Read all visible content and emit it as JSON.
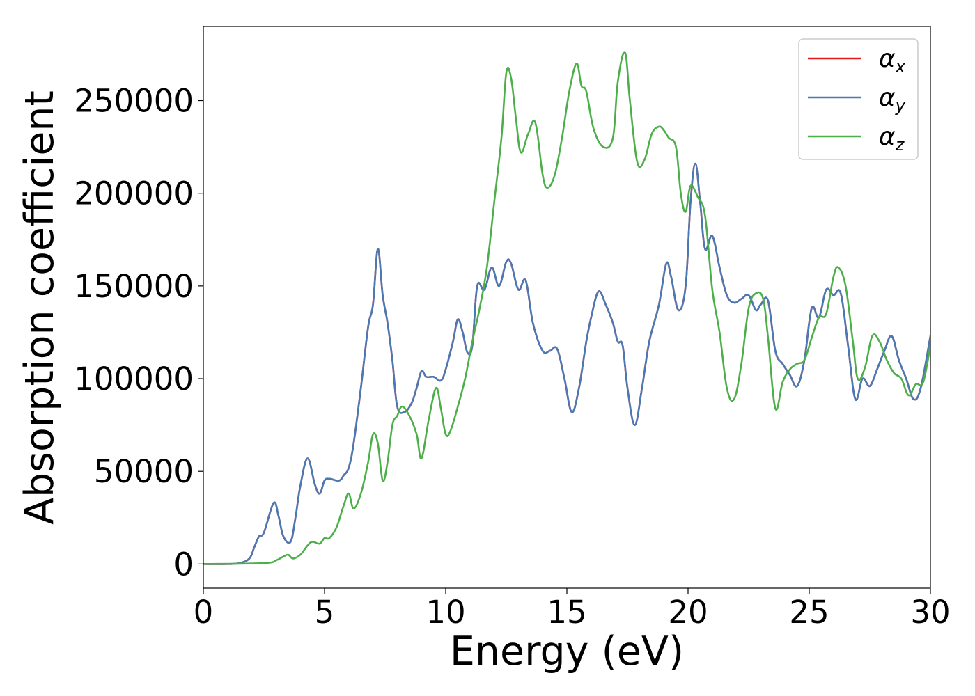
{
  "chart_data": {
    "type": "line",
    "title": "",
    "xlabel": "Energy (eV)",
    "ylabel": "Absorption coefficient",
    "xlim": [
      0,
      30
    ],
    "ylim": [
      -13000,
      290000
    ],
    "xticks": [
      0,
      5,
      10,
      15,
      20,
      25,
      30
    ],
    "yticks": [
      0,
      50000,
      100000,
      150000,
      200000,
      250000
    ],
    "xtick_labels": [
      "0",
      "5",
      "10",
      "15",
      "20",
      "25",
      "30"
    ],
    "ytick_labels": [
      "0",
      "50000",
      "100000",
      "150000",
      "200000",
      "250000"
    ],
    "legend_position": "top-right",
    "series": [
      {
        "name": "α_x",
        "label_main": "α",
        "label_sub": "x",
        "color": "#e41a1c",
        "x": [
          0,
          1,
          1.5,
          1.9,
          2.1,
          2.3,
          2.5,
          2.9,
          3.1,
          3.3,
          3.6,
          3.8,
          4.0,
          4.3,
          4.6,
          4.8,
          5.0,
          5.2,
          5.6,
          5.8,
          6.0,
          6.2,
          6.5,
          6.8,
          7.0,
          7.2,
          7.4,
          7.6,
          7.8,
          8.0,
          8.3,
          8.6,
          8.8,
          9.0,
          9.2,
          9.5,
          9.8,
          10.0,
          10.3,
          10.5,
          10.7,
          10.9,
          11.1,
          11.3,
          11.6,
          11.9,
          12.2,
          12.5,
          12.7,
          13.0,
          13.3,
          13.6,
          14.0,
          14.3,
          14.6,
          14.9,
          15.2,
          15.5,
          15.8,
          16.0,
          16.3,
          16.6,
          16.9,
          17.1,
          17.3,
          17.5,
          17.8,
          18.1,
          18.4,
          18.8,
          19.1,
          19.3,
          19.6,
          19.9,
          20.1,
          20.3,
          20.5,
          20.7,
          21.0,
          21.3,
          21.6,
          21.9,
          22.2,
          22.5,
          22.8,
          23.0,
          23.3,
          23.6,
          23.9,
          24.2,
          24.5,
          24.8,
          25.1,
          25.4,
          25.7,
          26.0,
          26.3,
          26.6,
          26.9,
          27.2,
          27.5,
          27.8,
          28.1,
          28.4,
          28.7,
          29.0,
          29.3,
          29.6,
          30.0
        ],
        "y": [
          0,
          0,
          500,
          3000,
          9000,
          15000,
          17000,
          33000,
          26000,
          15000,
          12000,
          25000,
          42000,
          57000,
          43000,
          38000,
          45000,
          46000,
          45000,
          48000,
          52000,
          65000,
          95000,
          128000,
          140000,
          170000,
          145000,
          130000,
          110000,
          85000,
          82000,
          87000,
          95000,
          104000,
          101000,
          101000,
          99000,
          105000,
          120000,
          132000,
          125000,
          114000,
          118000,
          150000,
          148000,
          160000,
          150000,
          163000,
          162000,
          148000,
          153000,
          130000,
          115000,
          115000,
          116000,
          100000,
          82000,
          95000,
          120000,
          133000,
          147000,
          140000,
          130000,
          120000,
          118000,
          95000,
          75000,
          95000,
          120000,
          140000,
          162000,
          155000,
          137000,
          150000,
          195000,
          216000,
          195000,
          170000,
          177000,
          160000,
          145000,
          141000,
          143000,
          145000,
          137000,
          140000,
          142000,
          115000,
          108000,
          102000,
          96000,
          110000,
          138000,
          133000,
          148000,
          145000,
          146000,
          118000,
          89000,
          100000,
          96000,
          105000,
          115000,
          123000,
          110000,
          100000,
          89000,
          95000,
          123000
        ]
      },
      {
        "name": "α_y",
        "label_main": "α",
        "label_sub": "y",
        "color": "#4a79b4",
        "x": [
          0,
          1,
          1.5,
          1.9,
          2.1,
          2.3,
          2.5,
          2.9,
          3.1,
          3.3,
          3.6,
          3.8,
          4.0,
          4.3,
          4.6,
          4.8,
          5.0,
          5.2,
          5.6,
          5.8,
          6.0,
          6.2,
          6.5,
          6.8,
          7.0,
          7.2,
          7.4,
          7.6,
          7.8,
          8.0,
          8.3,
          8.6,
          8.8,
          9.0,
          9.2,
          9.5,
          9.8,
          10.0,
          10.3,
          10.5,
          10.7,
          10.9,
          11.1,
          11.3,
          11.6,
          11.9,
          12.2,
          12.5,
          12.7,
          13.0,
          13.3,
          13.6,
          14.0,
          14.3,
          14.6,
          14.9,
          15.2,
          15.5,
          15.8,
          16.0,
          16.3,
          16.6,
          16.9,
          17.1,
          17.3,
          17.5,
          17.8,
          18.1,
          18.4,
          18.8,
          19.1,
          19.3,
          19.6,
          19.9,
          20.1,
          20.3,
          20.5,
          20.7,
          21.0,
          21.3,
          21.6,
          21.9,
          22.2,
          22.5,
          22.8,
          23.0,
          23.3,
          23.6,
          23.9,
          24.2,
          24.5,
          24.8,
          25.1,
          25.4,
          25.7,
          26.0,
          26.3,
          26.6,
          26.9,
          27.2,
          27.5,
          27.8,
          28.1,
          28.4,
          28.7,
          29.0,
          29.3,
          29.6,
          30.0
        ],
        "y": [
          0,
          0,
          500,
          3000,
          9000,
          15000,
          17000,
          33000,
          26000,
          15000,
          12000,
          25000,
          42000,
          57000,
          43000,
          38000,
          45000,
          46000,
          45000,
          48000,
          52000,
          65000,
          95000,
          128000,
          140000,
          170000,
          145000,
          130000,
          110000,
          85000,
          82000,
          87000,
          95000,
          104000,
          101000,
          101000,
          99000,
          105000,
          120000,
          132000,
          125000,
          114000,
          118000,
          150000,
          148000,
          160000,
          150000,
          163000,
          162000,
          148000,
          153000,
          130000,
          115000,
          115000,
          116000,
          100000,
          82000,
          95000,
          120000,
          133000,
          147000,
          140000,
          130000,
          120000,
          118000,
          95000,
          75000,
          95000,
          120000,
          140000,
          162000,
          155000,
          137000,
          150000,
          195000,
          216000,
          195000,
          170000,
          177000,
          160000,
          145000,
          141000,
          143000,
          145000,
          137000,
          140000,
          142000,
          115000,
          108000,
          102000,
          96000,
          110000,
          138000,
          133000,
          148000,
          145000,
          146000,
          118000,
          89000,
          100000,
          96000,
          105000,
          115000,
          123000,
          110000,
          100000,
          89000,
          95000,
          123000
        ]
      },
      {
        "name": "α_z",
        "label_main": "α",
        "label_sub": "z",
        "color": "#4daf4a",
        "x": [
          0,
          2.5,
          3.0,
          3.3,
          3.5,
          3.7,
          4.0,
          4.3,
          4.5,
          4.8,
          5.0,
          5.2,
          5.5,
          5.8,
          6.0,
          6.2,
          6.5,
          6.8,
          7.0,
          7.2,
          7.4,
          7.6,
          7.8,
          8.0,
          8.2,
          8.5,
          8.8,
          9.0,
          9.3,
          9.6,
          9.8,
          10.0,
          10.2,
          10.5,
          10.8,
          11.1,
          11.4,
          11.7,
          12.0,
          12.3,
          12.5,
          12.7,
          12.9,
          13.1,
          13.4,
          13.7,
          14.0,
          14.2,
          14.5,
          14.8,
          15.1,
          15.4,
          15.6,
          15.8,
          16.1,
          16.5,
          16.9,
          17.1,
          17.4,
          17.6,
          17.9,
          18.2,
          18.5,
          18.8,
          19.0,
          19.2,
          19.5,
          19.7,
          19.9,
          20.1,
          20.4,
          20.7,
          21.0,
          21.3,
          21.6,
          21.9,
          22.2,
          22.5,
          22.8,
          23.1,
          23.3,
          23.6,
          23.9,
          24.2,
          24.5,
          24.8,
          25.1,
          25.4,
          25.7,
          26.0,
          26.2,
          26.5,
          26.8,
          27.0,
          27.3,
          27.6,
          27.9,
          28.2,
          28.5,
          28.8,
          29.1,
          29.4,
          29.7,
          30.0
        ],
        "y": [
          0,
          500,
          2000,
          4000,
          5000,
          3000,
          5000,
          10000,
          12000,
          11000,
          14000,
          14000,
          20000,
          32000,
          38000,
          30000,
          38000,
          55000,
          70000,
          65000,
          45000,
          55000,
          75000,
          80000,
          85000,
          80000,
          70000,
          57000,
          78000,
          95000,
          84000,
          70000,
          72000,
          85000,
          100000,
          120000,
          138000,
          160000,
          195000,
          230000,
          265000,
          262000,
          240000,
          222000,
          232000,
          238000,
          210000,
          203000,
          210000,
          230000,
          255000,
          270000,
          258000,
          255000,
          235000,
          225000,
          230000,
          260000,
          276000,
          250000,
          217000,
          218000,
          232000,
          236000,
          234000,
          230000,
          225000,
          200000,
          190000,
          204000,
          198000,
          188000,
          148000,
          125000,
          95000,
          89000,
          108000,
          138000,
          146000,
          143000,
          122000,
          84000,
          98000,
          105000,
          108000,
          110000,
          122000,
          133000,
          135000,
          155000,
          160000,
          150000,
          120000,
          100000,
          106000,
          123000,
          120000,
          110000,
          103000,
          100000,
          91000,
          97000,
          98000,
          118000
        ]
      }
    ]
  }
}
